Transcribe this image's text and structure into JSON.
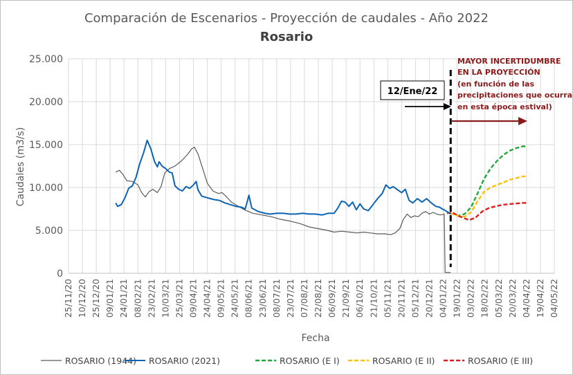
{
  "chart_data": {
    "type": "line",
    "title": "Comparación de Escenarios - Proyección de caudales - Año 2022",
    "subtitle": "Rosario",
    "xlabel": "Fecha",
    "ylabel": "Caudales (m3/s)",
    "ylim": [
      0,
      25000
    ],
    "yticks": [
      "0",
      "5.000",
      "10.000",
      "15.000",
      "20.000",
      "25.000"
    ],
    "xlim": [
      "2020-11-25",
      "2022-05-04"
    ],
    "xticks": [
      "25/11/20",
      "10/12/20",
      "25/12/20",
      "09/01/21",
      "24/01/21",
      "08/02/21",
      "23/02/21",
      "10/03/21",
      "25/03/21",
      "09/04/21",
      "24/04/21",
      "09/05/21",
      "24/05/21",
      "08/06/21",
      "23/06/21",
      "08/07/21",
      "23/07/21",
      "07/08/21",
      "22/08/21",
      "06/09/21",
      "21/09/21",
      "06/10/21",
      "21/10/21",
      "05/11/21",
      "20/11/21",
      "05/12/21",
      "20/12/21",
      "04/01/22",
      "19/01/22",
      "03/02/22",
      "18/02/22",
      "05/03/22",
      "20/03/22",
      "04/04/22",
      "19/04/22",
      "04/05/22"
    ],
    "grid": true,
    "legend_position": "bottom",
    "series": [
      {
        "name": "ROSARIO (1944)",
        "color": "#595959",
        "style": "solid",
        "points": [
          [
            "2021-01-15",
            11800
          ],
          [
            "2021-01-19",
            12000
          ],
          [
            "2021-01-23",
            11500
          ],
          [
            "2021-01-27",
            10800
          ],
          [
            "2021-02-02",
            10700
          ],
          [
            "2021-02-08",
            10300
          ],
          [
            "2021-02-12",
            9400
          ],
          [
            "2021-02-16",
            8900
          ],
          [
            "2021-02-20",
            9500
          ],
          [
            "2021-02-24",
            9800
          ],
          [
            "2021-03-01",
            9400
          ],
          [
            "2021-03-05",
            10100
          ],
          [
            "2021-03-09",
            11700
          ],
          [
            "2021-03-14",
            12200
          ],
          [
            "2021-03-20",
            12500
          ],
          [
            "2021-03-27",
            13100
          ],
          [
            "2021-04-03",
            13900
          ],
          [
            "2021-04-07",
            14500
          ],
          [
            "2021-04-10",
            14700
          ],
          [
            "2021-04-14",
            13900
          ],
          [
            "2021-04-19",
            12200
          ],
          [
            "2021-04-24",
            10500
          ],
          [
            "2021-04-30",
            9600
          ],
          [
            "2021-05-06",
            9300
          ],
          [
            "2021-05-10",
            9400
          ],
          [
            "2021-05-14",
            9000
          ],
          [
            "2021-05-20",
            8300
          ],
          [
            "2021-05-26",
            7900
          ],
          [
            "2021-06-03",
            7400
          ],
          [
            "2021-06-12",
            7000
          ],
          [
            "2021-06-22",
            6800
          ],
          [
            "2021-07-02",
            6600
          ],
          [
            "2021-07-12",
            6300
          ],
          [
            "2021-07-22",
            6100
          ],
          [
            "2021-08-02",
            5800
          ],
          [
            "2021-08-12",
            5400
          ],
          [
            "2021-08-22",
            5200
          ],
          [
            "2021-09-01",
            5000
          ],
          [
            "2021-09-08",
            4800
          ],
          [
            "2021-09-16",
            4900
          ],
          [
            "2021-09-25",
            4800
          ],
          [
            "2021-10-03",
            4700
          ],
          [
            "2021-10-10",
            4800
          ],
          [
            "2021-10-17",
            4700
          ],
          [
            "2021-10-25",
            4600
          ],
          [
            "2021-11-02",
            4600
          ],
          [
            "2021-11-08",
            4500
          ],
          [
            "2021-11-13",
            4700
          ],
          [
            "2021-11-18",
            5200
          ],
          [
            "2021-11-22",
            6300
          ],
          [
            "2021-11-26",
            6900
          ],
          [
            "2021-11-30",
            6500
          ],
          [
            "2021-12-04",
            6700
          ],
          [
            "2021-12-08",
            6600
          ],
          [
            "2021-12-12",
            7000
          ],
          [
            "2021-12-16",
            7200
          ],
          [
            "2021-12-20",
            6900
          ],
          [
            "2021-12-24",
            7100
          ],
          [
            "2021-12-28",
            6900
          ],
          [
            "2022-01-01",
            6800
          ],
          [
            "2022-01-05",
            6900
          ],
          [
            "2022-01-06",
            100
          ],
          [
            "2022-01-12",
            100
          ]
        ]
      },
      {
        "name": "ROSARIO (2021)",
        "color": "#0a63b3",
        "style": "solid",
        "points": [
          [
            "2021-01-15",
            8200
          ],
          [
            "2021-01-17",
            7800
          ],
          [
            "2021-01-21",
            8000
          ],
          [
            "2021-01-25",
            8800
          ],
          [
            "2021-01-29",
            9900
          ],
          [
            "2021-02-02",
            10200
          ],
          [
            "2021-02-06",
            11200
          ],
          [
            "2021-02-10",
            12800
          ],
          [
            "2021-02-14",
            14000
          ],
          [
            "2021-02-18",
            15500
          ],
          [
            "2021-02-22",
            14500
          ],
          [
            "2021-02-26",
            13000
          ],
          [
            "2021-03-01",
            12400
          ],
          [
            "2021-03-03",
            13000
          ],
          [
            "2021-03-06",
            12500
          ],
          [
            "2021-03-10",
            12200
          ],
          [
            "2021-03-14",
            11800
          ],
          [
            "2021-03-17",
            11700
          ],
          [
            "2021-03-20",
            10200
          ],
          [
            "2021-03-24",
            9800
          ],
          [
            "2021-03-28",
            9600
          ],
          [
            "2021-04-01",
            10100
          ],
          [
            "2021-04-05",
            9900
          ],
          [
            "2021-04-09",
            10300
          ],
          [
            "2021-04-12",
            10700
          ],
          [
            "2021-04-14",
            9700
          ],
          [
            "2021-04-18",
            9000
          ],
          [
            "2021-04-24",
            8800
          ],
          [
            "2021-05-01",
            8600
          ],
          [
            "2021-05-07",
            8500
          ],
          [
            "2021-05-13",
            8200
          ],
          [
            "2021-05-19",
            8000
          ],
          [
            "2021-05-25",
            7800
          ],
          [
            "2021-05-31",
            7700
          ],
          [
            "2021-06-04",
            7500
          ],
          [
            "2021-06-08",
            9100
          ],
          [
            "2021-06-11",
            7600
          ],
          [
            "2021-06-18",
            7200
          ],
          [
            "2021-06-25",
            7000
          ],
          [
            "2021-07-01",
            6900
          ],
          [
            "2021-07-08",
            7000
          ],
          [
            "2021-07-15",
            7000
          ],
          [
            "2021-07-22",
            6900
          ],
          [
            "2021-07-29",
            6900
          ],
          [
            "2021-08-05",
            7000
          ],
          [
            "2021-08-12",
            6900
          ],
          [
            "2021-08-19",
            6900
          ],
          [
            "2021-08-26",
            6800
          ],
          [
            "2021-09-02",
            7000
          ],
          [
            "2021-09-08",
            7000
          ],
          [
            "2021-09-12",
            7600
          ],
          [
            "2021-09-16",
            8400
          ],
          [
            "2021-09-20",
            8300
          ],
          [
            "2021-09-24",
            7800
          ],
          [
            "2021-09-28",
            8300
          ],
          [
            "2021-10-02",
            7400
          ],
          [
            "2021-10-06",
            8100
          ],
          [
            "2021-10-10",
            7500
          ],
          [
            "2021-10-15",
            7300
          ],
          [
            "2021-10-20",
            8000
          ],
          [
            "2021-10-25",
            8700
          ],
          [
            "2021-10-30",
            9300
          ],
          [
            "2021-11-03",
            10300
          ],
          [
            "2021-11-07",
            9900
          ],
          [
            "2021-11-11",
            10100
          ],
          [
            "2021-11-16",
            9700
          ],
          [
            "2021-11-20",
            9400
          ],
          [
            "2021-11-24",
            9800
          ],
          [
            "2021-11-28",
            8500
          ],
          [
            "2021-12-02",
            8200
          ],
          [
            "2021-12-07",
            8700
          ],
          [
            "2021-12-12",
            8300
          ],
          [
            "2021-12-17",
            8700
          ],
          [
            "2021-12-22",
            8200
          ],
          [
            "2021-12-27",
            7800
          ],
          [
            "2021-12-31",
            7700
          ],
          [
            "2022-01-03",
            7500
          ],
          [
            "2022-01-08",
            7200
          ],
          [
            "2022-01-12",
            6900
          ]
        ]
      },
      {
        "name": "ROSARIO (E I)",
        "color": "#1ea83c",
        "style": "dashed",
        "points": [
          [
            "2022-01-12",
            7000
          ],
          [
            "2022-01-20",
            6700
          ],
          [
            "2022-01-27",
            6900
          ],
          [
            "2022-02-03",
            7700
          ],
          [
            "2022-02-10",
            9300
          ],
          [
            "2022-02-17",
            11000
          ],
          [
            "2022-02-24",
            12200
          ],
          [
            "2022-03-03",
            13100
          ],
          [
            "2022-03-10",
            13800
          ],
          [
            "2022-03-17",
            14300
          ],
          [
            "2022-03-24",
            14600
          ],
          [
            "2022-03-31",
            14800
          ],
          [
            "2022-04-04",
            14800
          ]
        ]
      },
      {
        "name": "ROSARIO (E II)",
        "color": "#ffc000",
        "style": "dashed",
        "points": [
          [
            "2022-01-12",
            7000
          ],
          [
            "2022-01-20",
            6700
          ],
          [
            "2022-01-27",
            6600
          ],
          [
            "2022-02-03",
            7100
          ],
          [
            "2022-02-10",
            8400
          ],
          [
            "2022-02-17",
            9500
          ],
          [
            "2022-02-24",
            10000
          ],
          [
            "2022-03-03",
            10300
          ],
          [
            "2022-03-10",
            10600
          ],
          [
            "2022-03-17",
            10900
          ],
          [
            "2022-03-24",
            11100
          ],
          [
            "2022-03-31",
            11300
          ],
          [
            "2022-04-04",
            11300
          ]
        ]
      },
      {
        "name": "ROSARIO (E III)",
        "color": "#e31a1c",
        "style": "dashed",
        "points": [
          [
            "2022-01-08",
            7000
          ],
          [
            "2022-01-14",
            7100
          ],
          [
            "2022-01-20",
            6700
          ],
          [
            "2022-01-27",
            6400
          ],
          [
            "2022-02-01",
            6200
          ],
          [
            "2022-02-08",
            6500
          ],
          [
            "2022-02-15",
            7200
          ],
          [
            "2022-02-22",
            7600
          ],
          [
            "2022-03-01",
            7800
          ],
          [
            "2022-03-10",
            8000
          ],
          [
            "2022-03-20",
            8100
          ],
          [
            "2022-03-31",
            8200
          ],
          [
            "2022-04-04",
            8200
          ]
        ]
      }
    ],
    "annotations": {
      "vline_date": "2022-01-12",
      "date_box": "12/Ene/22",
      "uncertainty_lines": [
        "MAYOR INCERTIDUMBRE",
        "EN LA PROYECCIÓN",
        "(en función de las",
        "precipitaciones que ocurran",
        "en esta época estival)"
      ]
    }
  }
}
